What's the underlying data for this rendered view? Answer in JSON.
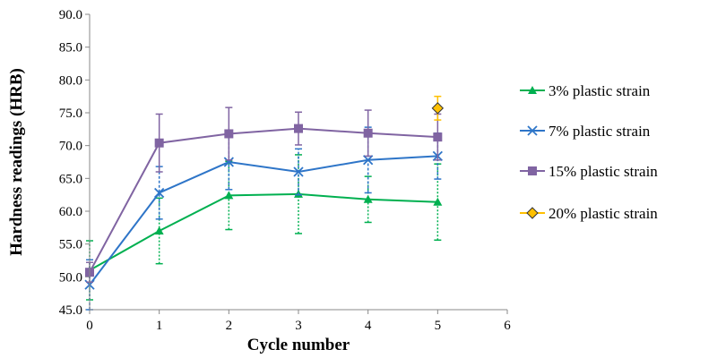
{
  "chart_data": {
    "type": "line",
    "title": "",
    "xlabel": "Cycle number",
    "ylabel": "Hardness readings (HRB)",
    "xlim": [
      0,
      6
    ],
    "ylim": [
      45,
      90
    ],
    "x_ticks": [
      "0",
      "1",
      "2",
      "3",
      "4",
      "5",
      "6"
    ],
    "y_ticks": [
      "45.0",
      "50.0",
      "55.0",
      "60.0",
      "65.0",
      "70.0",
      "75.0",
      "80.0",
      "85.0",
      "90.0"
    ],
    "grid": false,
    "legend_position": "right",
    "series": [
      {
        "name": "3% plastic strain",
        "color": "#00b050",
        "marker": "triangle",
        "x": [
          0,
          1,
          2,
          3,
          4,
          5
        ],
        "y": [
          51.0,
          57.0,
          62.4,
          62.6,
          61.8,
          61.4
        ],
        "error": [
          4.5,
          5.0,
          5.2,
          6.0,
          3.5,
          5.8
        ]
      },
      {
        "name": "7% plastic strain",
        "color": "#2e75c8",
        "marker": "x",
        "x": [
          0,
          1,
          2,
          3,
          4,
          5
        ],
        "y": [
          48.8,
          62.8,
          67.5,
          66.0,
          67.8,
          68.4
        ],
        "error": [
          3.8,
          4.0,
          4.2,
          3.5,
          5.0,
          3.5
        ]
      },
      {
        "name": "15% plastic strain",
        "color": "#8064a2",
        "marker": "square",
        "x": [
          0,
          1,
          2,
          3,
          4,
          5
        ],
        "y": [
          50.7,
          70.4,
          71.8,
          72.6,
          71.9,
          71.3
        ],
        "error": [
          1.5,
          4.4,
          4.0,
          2.5,
          3.5,
          3.5
        ]
      },
      {
        "name": "20% plastic strain",
        "color": "#ffc000",
        "marker": "diamond",
        "x": [
          5
        ],
        "y": [
          75.7
        ],
        "error": [
          1.8
        ]
      }
    ]
  }
}
